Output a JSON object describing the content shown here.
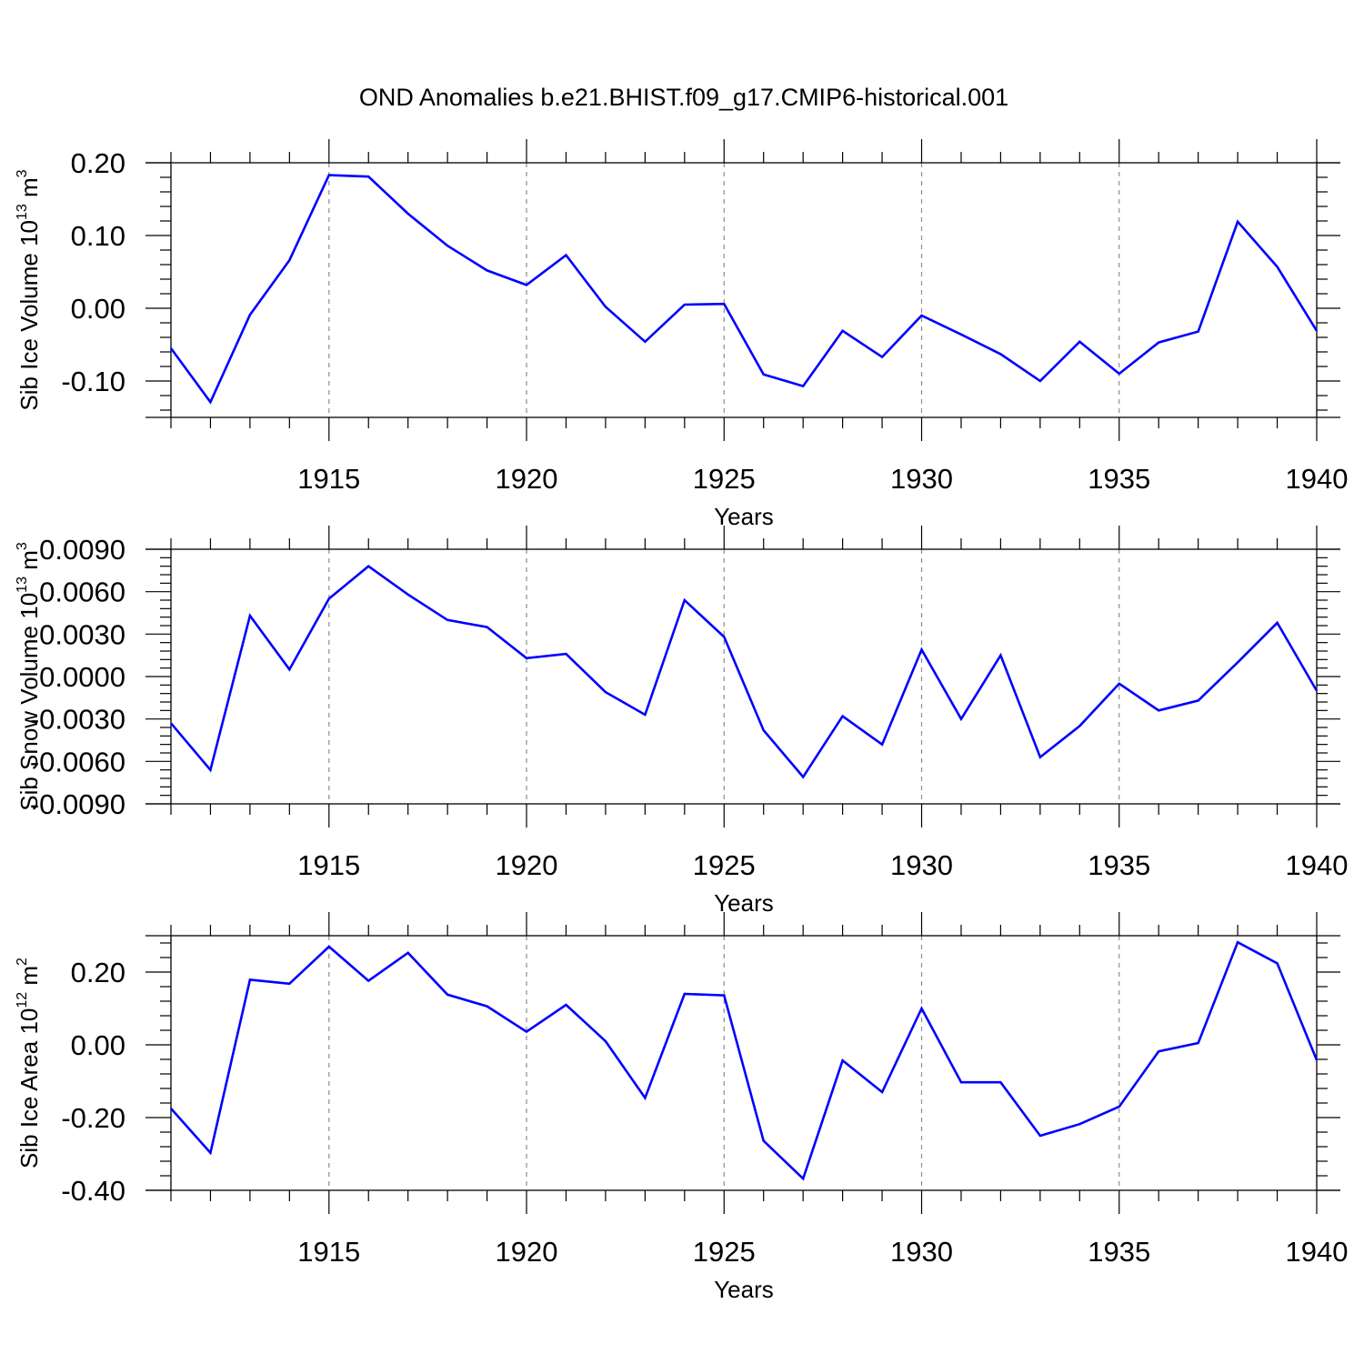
{
  "figure_title": "OND Anomalies b.e21.BHIST.f09_g17.CMIP6-historical.001",
  "line_color": "#0000ff",
  "chart_data": [
    {
      "type": "line",
      "title": "",
      "xlabel": "Years",
      "ylabel_base": "Sib Ice Volume 10",
      "ylabel_exp": "13",
      "ylabel_unit": " m",
      "ylabel_unit_exp": "3",
      "xlim": [
        1911,
        1940
      ],
      "ylim": [
        -0.15,
        0.2
      ],
      "yticks": [
        0.2,
        0.1,
        0.0,
        -0.1
      ],
      "ytick_labels": [
        "0.20",
        "0.10",
        "0.00",
        "-0.10"
      ],
      "xticks": [
        1915,
        1920,
        1925,
        1930,
        1935,
        1940
      ],
      "xtick_labels": [
        "1915",
        "1920",
        "1925",
        "1930",
        "1935",
        "1940"
      ],
      "x": [
        1911,
        1912,
        1913,
        1914,
        1915,
        1916,
        1917,
        1918,
        1919,
        1920,
        1921,
        1922,
        1923,
        1924,
        1925,
        1926,
        1927,
        1928,
        1929,
        1930,
        1931,
        1932,
        1933,
        1934,
        1935,
        1936,
        1937,
        1938,
        1939,
        1940
      ],
      "series": [
        {
          "name": "Sib Ice Volume",
          "values": [
            -0.055,
            -0.129,
            -0.009,
            0.066,
            0.183,
            0.181,
            0.13,
            0.086,
            0.052,
            0.032,
            0.073,
            0.002,
            -0.046,
            0.005,
            0.006,
            -0.091,
            -0.107,
            -0.031,
            -0.067,
            -0.01,
            -0.036,
            -0.063,
            -0.1,
            -0.046,
            -0.09,
            -0.047,
            -0.032,
            0.119,
            0.057,
            -0.031
          ]
        }
      ]
    },
    {
      "type": "line",
      "title": "",
      "xlabel": "Years",
      "ylabel_base": "Sib Snow Volume 10",
      "ylabel_exp": "13",
      "ylabel_unit": " m",
      "ylabel_unit_exp": "3",
      "xlim": [
        1911,
        1940
      ],
      "ylim": [
        -0.009,
        0.009
      ],
      "yticks": [
        0.009,
        0.006,
        0.003,
        0.0,
        -0.003,
        -0.006,
        -0.009
      ],
      "ytick_labels": [
        "0.0090",
        "0.0060",
        "0.0030",
        "0.0000",
        "-0.0030",
        "-0.0060",
        "-0.0090"
      ],
      "xticks": [
        1915,
        1920,
        1925,
        1930,
        1935,
        1940
      ],
      "xtick_labels": [
        "1915",
        "1920",
        "1925",
        "1930",
        "1935",
        "1940"
      ],
      "x": [
        1911,
        1912,
        1913,
        1914,
        1915,
        1916,
        1917,
        1918,
        1919,
        1920,
        1921,
        1922,
        1923,
        1924,
        1925,
        1926,
        1927,
        1928,
        1929,
        1930,
        1931,
        1932,
        1933,
        1934,
        1935,
        1936,
        1937,
        1938,
        1939,
        1940
      ],
      "series": [
        {
          "name": "Sib Snow Volume",
          "values": [
            -0.0033,
            -0.0066,
            0.0043,
            0.0005,
            0.0055,
            0.0078,
            0.0058,
            0.004,
            0.0035,
            0.0013,
            0.0016,
            -0.0011,
            -0.0027,
            0.0054,
            0.0028,
            -0.0038,
            -0.0071,
            -0.0028,
            -0.0048,
            0.0019,
            -0.003,
            0.0015,
            -0.0057,
            -0.0035,
            -0.0005,
            -0.0024,
            -0.0017,
            0.001,
            0.0038,
            -0.001
          ]
        }
      ]
    },
    {
      "type": "line",
      "title": "",
      "xlabel": "Years",
      "ylabel_base": "Sib Ice Area 10",
      "ylabel_exp": "12",
      "ylabel_unit": " m",
      "ylabel_unit_exp": "2",
      "xlim": [
        1911,
        1940
      ],
      "ylim": [
        -0.4,
        0.3
      ],
      "yticks": [
        0.2,
        0.0,
        -0.2,
        -0.4
      ],
      "ytick_labels": [
        "0.20",
        "0.00",
        "-0.20",
        "-0.40"
      ],
      "xticks": [
        1915,
        1920,
        1925,
        1930,
        1935,
        1940
      ],
      "xtick_labels": [
        "1915",
        "1920",
        "1925",
        "1930",
        "1935",
        "1940"
      ],
      "x": [
        1911,
        1912,
        1913,
        1914,
        1915,
        1916,
        1917,
        1918,
        1919,
        1920,
        1921,
        1922,
        1923,
        1924,
        1925,
        1926,
        1927,
        1928,
        1929,
        1930,
        1931,
        1932,
        1933,
        1934,
        1935,
        1936,
        1937,
        1938,
        1939,
        1940
      ],
      "series": [
        {
          "name": "Sib Ice Area",
          "values": [
            -0.175,
            -0.297,
            0.179,
            0.168,
            0.27,
            0.176,
            0.253,
            0.138,
            0.106,
            0.036,
            0.11,
            0.01,
            -0.146,
            0.14,
            0.136,
            -0.264,
            -0.368,
            -0.043,
            -0.13,
            0.1,
            -0.103,
            -0.103,
            -0.25,
            -0.218,
            -0.17,
            -0.018,
            0.005,
            0.282,
            0.224,
            -0.042
          ]
        }
      ]
    }
  ]
}
